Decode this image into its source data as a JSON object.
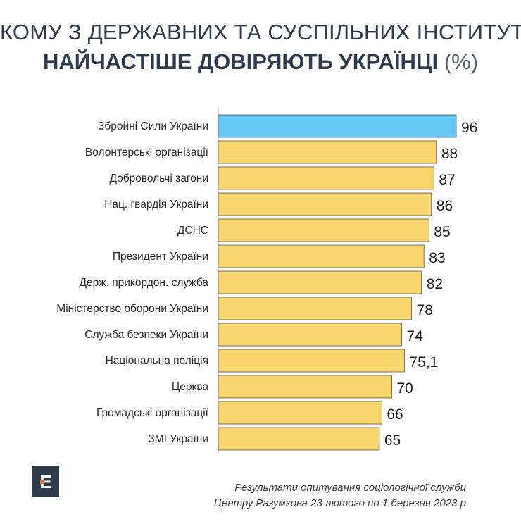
{
  "header": {
    "title_line1": "КОМУ З ДЕРЖАВНИХ ТА СУСПІЛЬНИХ ІНСТИТУТІВ",
    "title_line2_bold": "НАЙЧАСТІШЕ ДОВІРЯЮТЬ УКРАЇНЦІ",
    "title_line2_unit": "(%)"
  },
  "logo": {
    "letter": "Е"
  },
  "source": {
    "line1": "Результати опитування соціологічної служби",
    "line2": "Центру Разумкова 23 лютого по 1 березня 2023 р"
  },
  "chart_data": {
    "type": "bar",
    "orientation": "horizontal",
    "categories": [
      "Збройні Сили України",
      "Волонтерські організації",
      "Добровольчі загони",
      "Нац. гвардія України",
      "ДСНС",
      "Президент України",
      "Держ. прикордон. служба",
      "Міністерство оборони України",
      "Служба безпеки України",
      "Національна поліція",
      "Церква",
      "Громадські організації",
      "ЗМІ України"
    ],
    "values": [
      96,
      88,
      87,
      86,
      85,
      83,
      82,
      78,
      74,
      75.1,
      70,
      66,
      65
    ],
    "value_labels": [
      "96",
      "88",
      "87",
      "86",
      "85",
      "83",
      "82",
      "78",
      "74",
      "75,1",
      "70",
      "66",
      "65"
    ],
    "highlight_color": "#66c8f5",
    "bar_color": "#f9d66b",
    "bar_stroke": "#555555",
    "xlim": [
      0,
      96
    ],
    "grid": false
  }
}
